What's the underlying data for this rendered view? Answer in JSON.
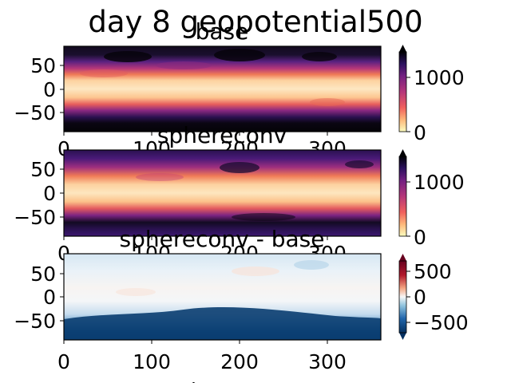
{
  "figure": {
    "title": "day 8 geopotential500",
    "xlabel_fragment": "lon"
  },
  "chart_data": [
    {
      "type": "heatmap",
      "title": "base",
      "xlim": [
        0,
        360
      ],
      "ylim": [
        -90,
        90
      ],
      "xticks": [
        0,
        100,
        200,
        300
      ],
      "yticks": [
        50,
        0,
        -50
      ],
      "xtick_labels": [
        "0",
        "100",
        "200",
        "300"
      ],
      "ytick_labels": [
        "50",
        "0",
        "−50"
      ],
      "colormap": "magma_r",
      "colorbar": {
        "range": [
          0,
          1400
        ],
        "ticks": [
          0,
          1000
        ],
        "tick_labels": [
          "0",
          "1000"
        ],
        "extend": "both"
      }
    },
    {
      "type": "heatmap",
      "title": "sphereconv",
      "xlim": [
        0,
        360
      ],
      "ylim": [
        -90,
        90
      ],
      "xticks": [
        0,
        100,
        200,
        300
      ],
      "yticks": [
        50,
        0,
        -50
      ],
      "xtick_labels": [
        "0",
        "100",
        "200",
        "300"
      ],
      "ytick_labels": [
        "50",
        "0",
        "−50"
      ],
      "colormap": "magma_r",
      "colorbar": {
        "range": [
          0,
          1400
        ],
        "ticks": [
          0,
          1000
        ],
        "tick_labels": [
          "0",
          "1000"
        ],
        "extend": "both"
      }
    },
    {
      "type": "heatmap",
      "title": "sphereconv - base",
      "xlim": [
        0,
        360
      ],
      "ylim": [
        -90,
        90
      ],
      "xticks": [
        0,
        100,
        200,
        300
      ],
      "yticks": [
        50,
        0,
        -50
      ],
      "xtick_labels": [
        "0",
        "100",
        "200",
        "300"
      ],
      "ytick_labels": [
        "50",
        "0",
        "−50"
      ],
      "colormap": "RdBu_r",
      "colorbar": {
        "range": [
          -700,
          700
        ],
        "ticks": [
          500,
          0,
          -500
        ],
        "tick_labels": [
          "500",
          "0",
          "−500"
        ],
        "extend": "both"
      }
    }
  ]
}
